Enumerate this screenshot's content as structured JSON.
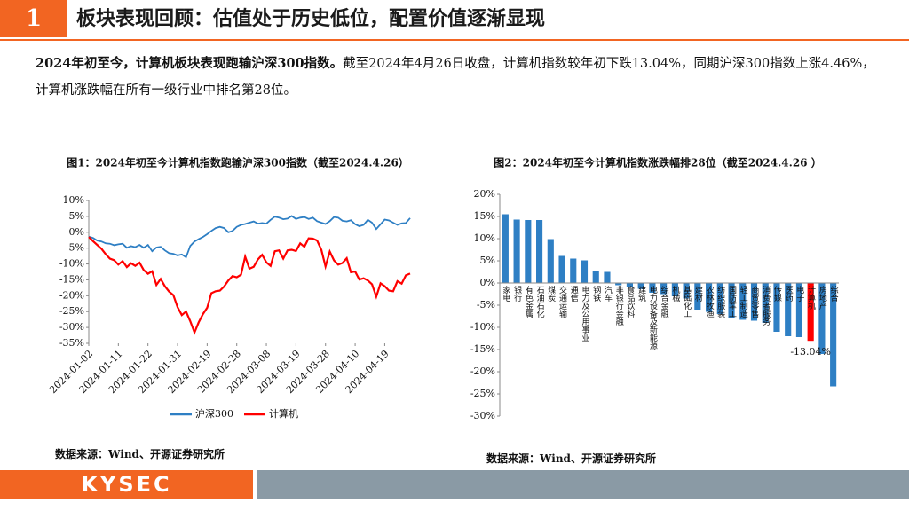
{
  "header": {
    "number": "1",
    "title": "板块表现回顾：估值处于历史低位，配置价值逐渐显现"
  },
  "intro": {
    "bold": "2024年初至今，计算机板块表现跑输沪深300指数。",
    "text": "截至2024年4月26日收盘，计算机指数较年初下跌13.04%，同期沪深300指数上涨4.46%，计算机涨跌幅在所有一级行业中排名第28位。"
  },
  "chart_data": [
    {
      "type": "line",
      "title": "图1：2024年初至今计算机指数跑输沪深300指数（截至2024.4.26）",
      "categories": [
        "2024-01-02",
        null,
        null,
        null,
        null,
        null,
        null,
        "2024-01-11",
        null,
        null,
        null,
        null,
        null,
        null,
        "2024-01-22",
        null,
        null,
        null,
        null,
        null,
        null,
        "2024-01-31",
        null,
        null,
        null,
        null,
        null,
        null,
        "2024-02-19",
        null,
        null,
        null,
        null,
        null,
        null,
        "2024-02-28",
        null,
        null,
        null,
        null,
        null,
        null,
        "2024-03-08",
        null,
        null,
        null,
        null,
        null,
        null,
        "2024-03-19",
        null,
        null,
        null,
        null,
        null,
        null,
        "2024-03-28",
        null,
        null,
        null,
        null,
        null,
        null,
        "2024-04-10",
        null,
        null,
        null,
        null,
        null,
        null,
        "2024-04-19",
        null,
        null,
        null,
        null,
        null,
        null
      ],
      "series": [
        {
          "name": "沪深300",
          "color": "#2e7fc4",
          "values": [
            -1.4,
            -1.8,
            -2.6,
            -2.9,
            -3.5,
            -3.6,
            -4.1,
            -3.8,
            -3.6,
            -4.9,
            -4.4,
            -4.7,
            -4.0,
            -4.9,
            -4.0,
            -6.0,
            -4.8,
            -4.6,
            -5.7,
            -6.6,
            -6.8,
            -7.3,
            -7.0,
            -7.9,
            -4.3,
            -2.9,
            -2.2,
            -1.5,
            -0.6,
            0.4,
            1.3,
            1.7,
            1.3,
            0.0,
            0.4,
            1.7,
            2.3,
            2.6,
            3.0,
            3.4,
            2.7,
            2.9,
            2.7,
            3.9,
            4.9,
            4.6,
            4.1,
            4.3,
            5.1,
            4.2,
            4.6,
            4.8,
            4.2,
            4.6,
            3.5,
            3.0,
            2.6,
            3.5,
            4.8,
            4.6,
            3.6,
            3.4,
            3.8,
            2.5,
            1.9,
            2.3,
            3.9,
            3.0,
            1.0,
            2.5,
            4.0,
            3.7,
            3.0,
            2.3,
            2.8,
            2.9,
            4.46
          ]
        },
        {
          "name": "计算机",
          "color": "#ff0000",
          "values": [
            -1.5,
            -2.8,
            -4.0,
            -5.2,
            -6.9,
            -8.3,
            -8.8,
            -10.2,
            -9.1,
            -11.0,
            -9.8,
            -10.6,
            -9.6,
            -11.9,
            -13.1,
            -12.3,
            -16.6,
            -14.7,
            -17.0,
            -18.7,
            -19.8,
            -23.6,
            -26.1,
            -25.0,
            -28.0,
            -31.6,
            -28.4,
            -25.8,
            -23.8,
            -19.2,
            -18.6,
            -18.4,
            -17.1,
            -15.2,
            -13.8,
            -14.2,
            -13.4,
            -7.7,
            -11.5,
            -10.9,
            -8.6,
            -7.1,
            -9.5,
            -10.6,
            -6.0,
            -5.7,
            -8.3,
            -5.7,
            -5.5,
            -5.9,
            -3.5,
            -4.6,
            -1.9,
            -2.0,
            -2.6,
            -5.5,
            -10.8,
            -6.1,
            -8.9,
            -10.2,
            -9.7,
            -8.2,
            -12.6,
            -12.4,
            -14.9,
            -14.5,
            -15.2,
            -16.4,
            -20.3,
            -16.1,
            -17.0,
            -18.4,
            -18.6,
            -15.4,
            -16.2,
            -13.6,
            -13.04
          ]
        }
      ],
      "ylim": [
        -35,
        10
      ],
      "yticks": [
        {
          "value": 10,
          "label": "10%"
        },
        {
          "value": 5,
          "label": "5%"
        },
        {
          "value": 0,
          "label": "0%"
        },
        {
          "value": -5,
          "label": "-5%"
        },
        {
          "value": -10,
          "label": "-10%"
        },
        {
          "value": -15,
          "label": "-15%"
        },
        {
          "value": -20,
          "label": "-20%"
        },
        {
          "value": -25,
          "label": "-25%"
        },
        {
          "value": -30,
          "label": "-30%"
        },
        {
          "value": -35,
          "label": "-35%"
        }
      ],
      "legend": "bottom",
      "grid": false
    },
    {
      "type": "bar",
      "title": "图2：2024年初至今计算机指数涨跌幅排28位（截至2024.4.26 ）",
      "categories": [
        "家电",
        "银行",
        "有色金属",
        "石油石化",
        "煤炭",
        "交通运输",
        "通信",
        "电力及公用事业",
        "钢铁",
        "汽车",
        "非银行金融",
        "食品饮料",
        "建筑",
        "电力设备及新能源",
        "综合金融",
        "机械",
        "基础化工",
        "建材",
        "农林牧渔",
        "纺织服装",
        "国防军工",
        "轻工制造",
        "商贸零售",
        "消费者服务",
        "传媒",
        "医药",
        "电子",
        "计算机",
        "房地产",
        "综合"
      ],
      "values": [
        15.5,
        14.3,
        14.2,
        14.2,
        9.9,
        6.1,
        5.5,
        5.1,
        2.8,
        2.5,
        -0.5,
        -1.0,
        -1.3,
        -2.2,
        -2.5,
        -3.0,
        -3.5,
        -6.0,
        -6.5,
        -7.0,
        -8.0,
        -8.3,
        -8.5,
        -9.0,
        -11.0,
        -12.0,
        -12.2,
        -13.04,
        -16.0,
        -23.3
      ],
      "value_labels": [
        null,
        null,
        null,
        null,
        null,
        null,
        null,
        null,
        null,
        null,
        null,
        null,
        null,
        null,
        null,
        null,
        null,
        null,
        null,
        null,
        null,
        null,
        null,
        null,
        null,
        null,
        null,
        "-13.04%",
        null,
        null
      ],
      "colors": [
        "#2e7fc4",
        "#2e7fc4",
        "#2e7fc4",
        "#2e7fc4",
        "#2e7fc4",
        "#2e7fc4",
        "#2e7fc4",
        "#2e7fc4",
        "#2e7fc4",
        "#2e7fc4",
        "#2e7fc4",
        "#2e7fc4",
        "#2e7fc4",
        "#2e7fc4",
        "#2e7fc4",
        "#2e7fc4",
        "#2e7fc4",
        "#2e7fc4",
        "#2e7fc4",
        "#2e7fc4",
        "#2e7fc4",
        "#2e7fc4",
        "#2e7fc4",
        "#2e7fc4",
        "#2e7fc4",
        "#2e7fc4",
        "#2e7fc4",
        "#ff0000",
        "#2e7fc4",
        "#2e7fc4"
      ],
      "ylim": [
        -30,
        20
      ],
      "yticks": [
        {
          "value": 20,
          "label": "20%"
        },
        {
          "value": 15,
          "label": "15%"
        },
        {
          "value": 10,
          "label": "10%"
        },
        {
          "value": 5,
          "label": "5%"
        },
        {
          "value": 0,
          "label": "0%"
        },
        {
          "value": -5,
          "label": "-5%"
        },
        {
          "value": -10,
          "label": "-10%"
        },
        {
          "value": -15,
          "label": "-15%"
        },
        {
          "value": -20,
          "label": "-20%"
        },
        {
          "value": -25,
          "label": "-25%"
        },
        {
          "value": -30,
          "label": "-30%"
        }
      ],
      "grid": false
    }
  ],
  "sources": [
    "数据来源：Wind、开源证券研究所",
    "数据来源：Wind、开源证券研究所"
  ],
  "footer": {
    "logo": "KYSEC"
  }
}
